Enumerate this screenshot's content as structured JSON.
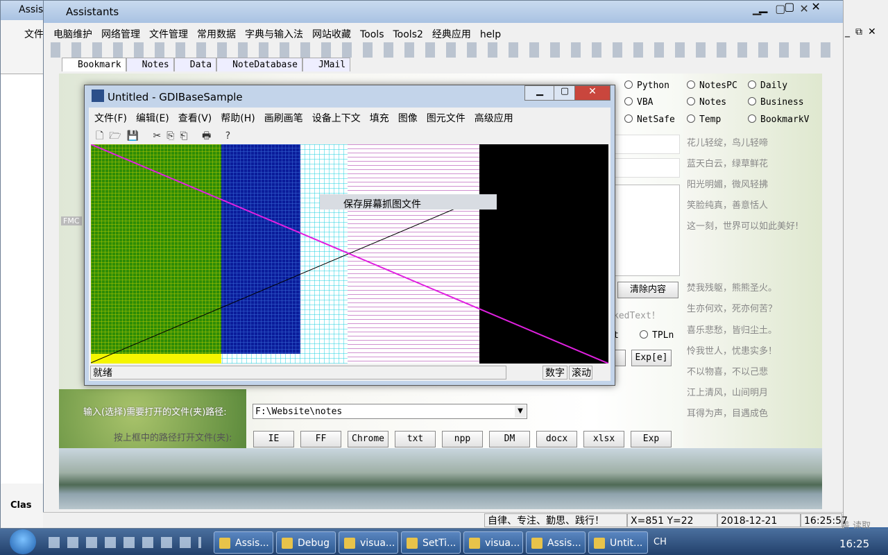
{
  "left_window": {
    "title": "Assis",
    "menu": "文件",
    "tab": "Clas",
    "label": "FMC"
  },
  "main_window": {
    "title": "Assistants",
    "menu": [
      "电脑维护",
      "网络管理",
      "文件管理",
      "常用数据",
      "字典与输入法",
      "网站收藏",
      "Tools",
      "Tools2",
      "经典应用",
      "help"
    ],
    "tabs": [
      "Bookmark",
      "Notes",
      "Data",
      "NoteDatabase",
      "JMail"
    ],
    "radios": [
      "Python",
      "VBA",
      "NetSafe",
      "NotesPC",
      "Notes",
      "Temp",
      "Daily",
      "Business",
      "BookmarkV"
    ],
    "poem": [
      "花儿轻绽，鸟儿轻啼",
      "蓝天白云，绿草鲜花",
      "阳光明媚，微风轻拂",
      "笑脸纯真，善意恬人",
      "这一刻，世界可以如此美好!",
      "焚我残躯，熊熊圣火。",
      "生亦何欢，死亦何苦？",
      "喜乐悲愁，皆归尘土。",
      "怜我世人，忧患实多！",
      "不以物喜，不以己悲",
      "江上清风，山间明月",
      "耳得为声，目遇成色"
    ],
    "clear_button": "清除内容",
    "partial_text": "kedText！",
    "partial_label": "t",
    "tpln": "TPLn",
    "exp_button": "Exp[e]",
    "path_label": "输入(选择)需要打开的文件(夹)路径:",
    "path_value": "F:\\Website\\notes",
    "open_label": "按上框中的路径打开文件(夹):",
    "open_buttons": [
      "IE",
      "FF",
      "Chrome",
      "txt",
      "npp",
      "DM",
      "docx",
      "xlsx",
      "Exp"
    ],
    "status": [
      "自律、专注、勤思、践行！",
      "X=851 Y=22",
      "2018-12-21",
      "16:25:57"
    ]
  },
  "sample_window": {
    "title": "Untitled - GDIBaseSample",
    "menu": [
      "文件(F)",
      "编辑(E)",
      "查看(V)",
      "帮助(H)",
      "画刷画笔",
      "设备上下文",
      "填充",
      "图像",
      "图元文件",
      "高级应用"
    ],
    "popup": "保存屏幕抓图文件",
    "status": [
      "就绪",
      "数字",
      "滚动"
    ]
  },
  "taskbar": {
    "items": [
      "Assis...",
      "Debug",
      "visua...",
      "SetTi...",
      "visua...",
      "Assis...",
      "Untit..."
    ],
    "lang": "CH",
    "clock": "16:25"
  },
  "right_edge": "盖 读取"
}
